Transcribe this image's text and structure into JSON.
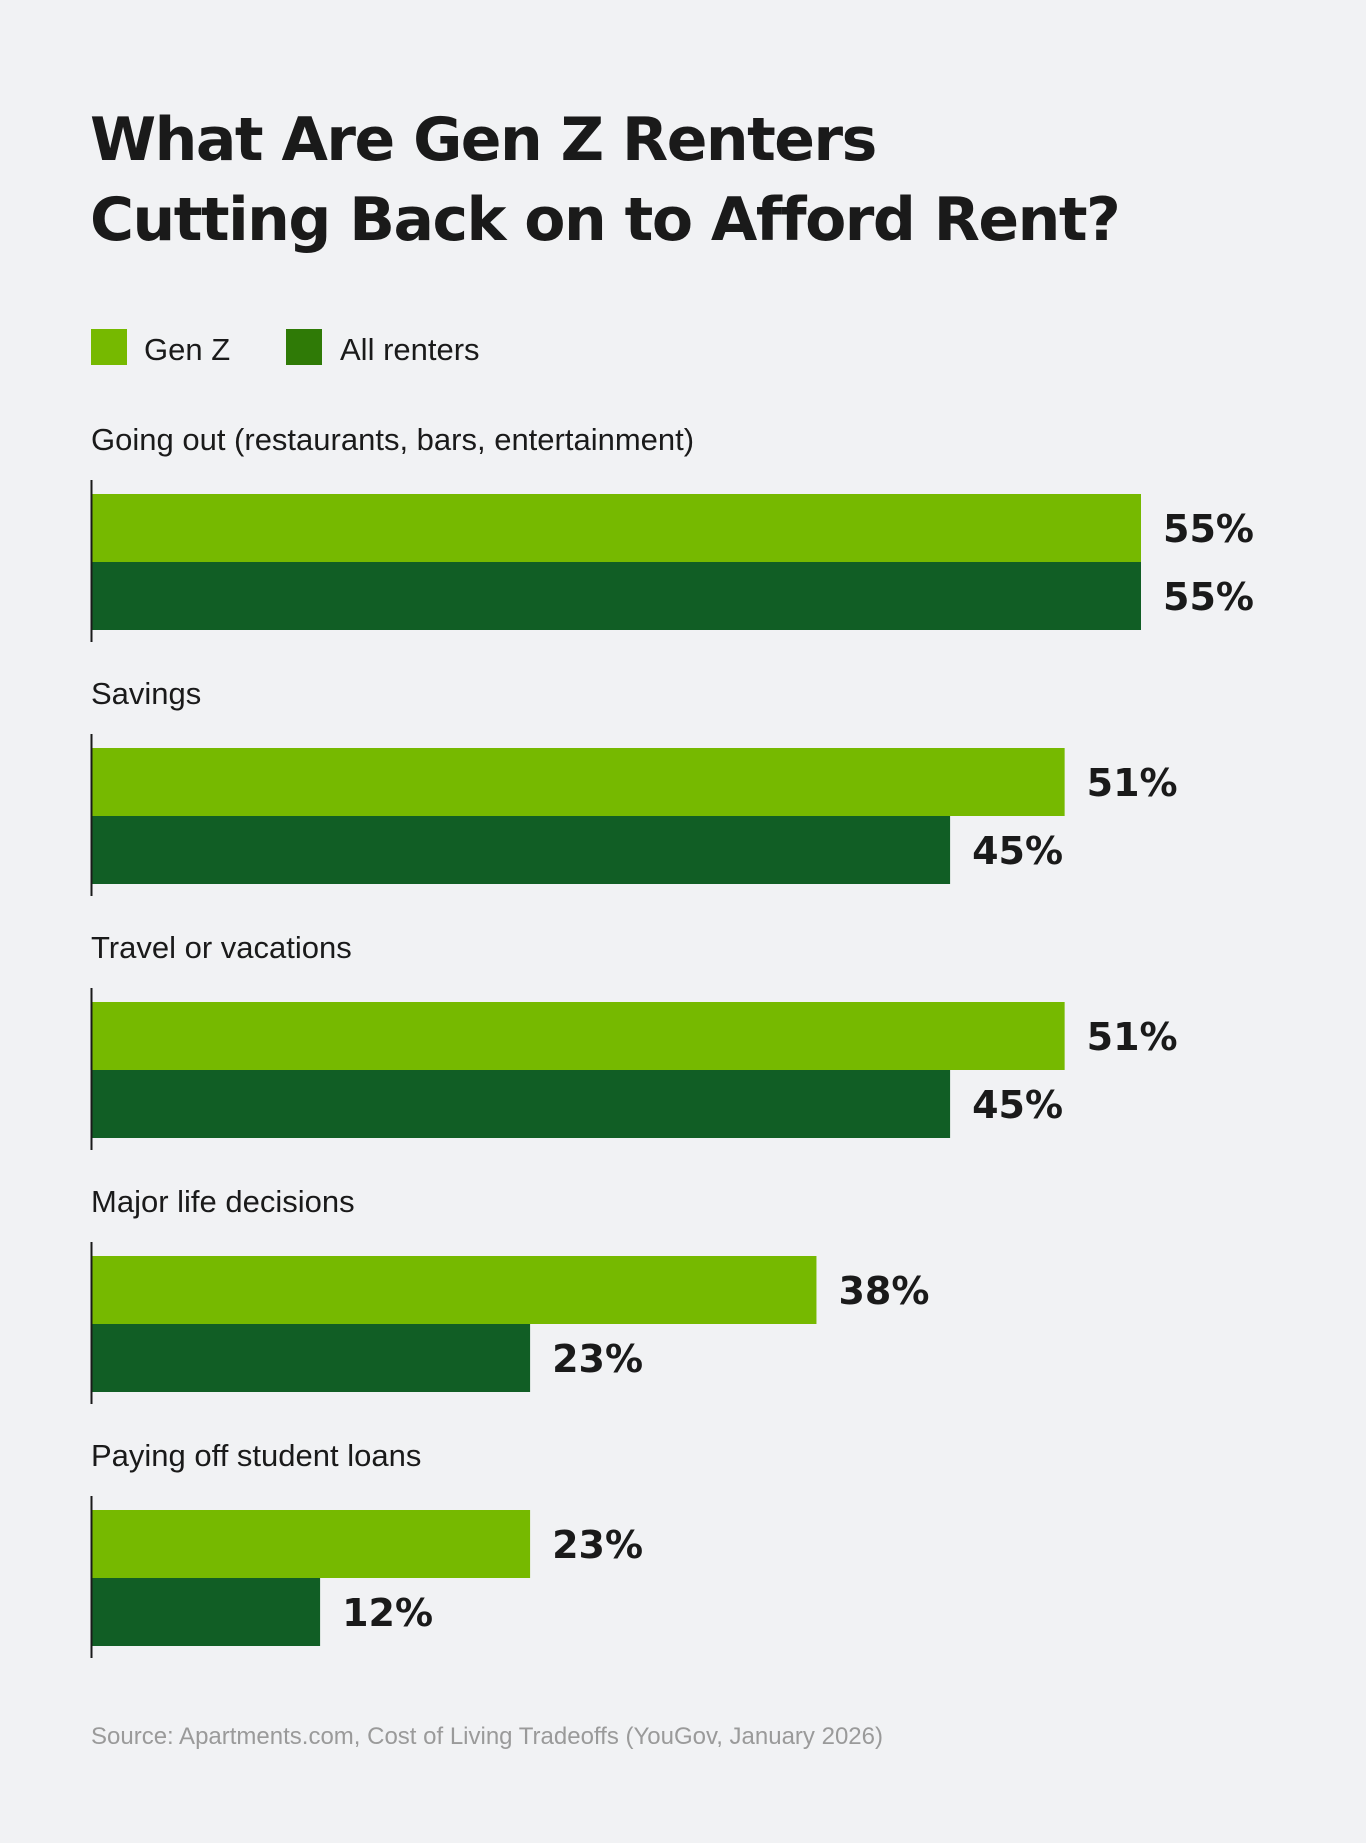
{
  "chart_data": {
    "type": "bar",
    "orientation": "horizontal",
    "title_lines": [
      "What Are Gen Z Renters",
      "Cutting Back on to Afford Rent?"
    ],
    "categories": [
      "Going out (restaurants, bars, entertainment)",
      "Savings",
      "Travel or vacations",
      "Major life decisions",
      "Paying off student loans"
    ],
    "series": [
      {
        "name": "Gen Z",
        "values": [
          55,
          51,
          51,
          38,
          23
        ],
        "color": "#76b900"
      },
      {
        "name": "All renters",
        "values": [
          55,
          45,
          45,
          23,
          12
        ],
        "color": "#115e25"
      }
    ],
    "value_labels": {
      "Gen Z": [
        "55%",
        "51%",
        "51%",
        "38%",
        "23%"
      ],
      "All renters": [
        "55%",
        "45%",
        "45%",
        "23%",
        "12%"
      ]
    },
    "legend_colors": [
      "#76b900",
      "#2f7a06"
    ],
    "legend_placement": "top-left",
    "xlim": [
      0,
      55
    ],
    "grid": false,
    "source": "Source: Apartments.com, Cost of Living Tradeoffs (YouGov, January 2026)"
  }
}
